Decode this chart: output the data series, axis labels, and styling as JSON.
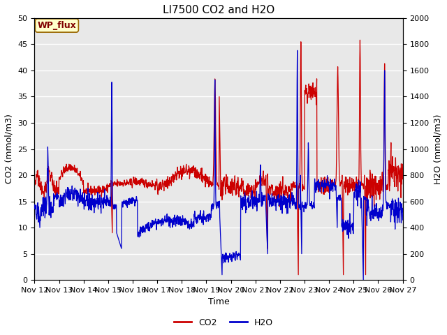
{
  "title": "LI7500 CO2 and H2O",
  "xlabel": "Time",
  "ylabel_left": "CO2 (mmol/m3)",
  "ylabel_right": "H2O (mmol/m3)",
  "ylim_left": [
    0,
    50
  ],
  "ylim_right": [
    0,
    2000
  ],
  "yticks_left": [
    0,
    5,
    10,
    15,
    20,
    25,
    30,
    35,
    40,
    45,
    50
  ],
  "yticks_right": [
    0,
    200,
    400,
    600,
    800,
    1000,
    1200,
    1400,
    1600,
    1800,
    2000
  ],
  "xtick_labels": [
    "Nov 12",
    "Nov 13",
    "Nov 14",
    "Nov 15",
    "Nov 16",
    "Nov 17",
    "Nov 18",
    "Nov 19",
    "Nov 20",
    "Nov 21",
    "Nov 22",
    "Nov 23",
    "Nov 24",
    "Nov 25",
    "Nov 26",
    "Nov 27"
  ],
  "co2_color": "#cc0000",
  "h2o_color": "#0000cc",
  "background_color": "#e8e8e8",
  "grid_color": "#ffffff",
  "annotation_text": "WP_flux",
  "annotation_bg": "#ffffcc",
  "annotation_border": "#996600",
  "annotation_text_color": "#800000",
  "title_fontsize": 11,
  "axis_label_fontsize": 9,
  "tick_fontsize": 8,
  "legend_fontsize": 9,
  "line_width": 0.9
}
